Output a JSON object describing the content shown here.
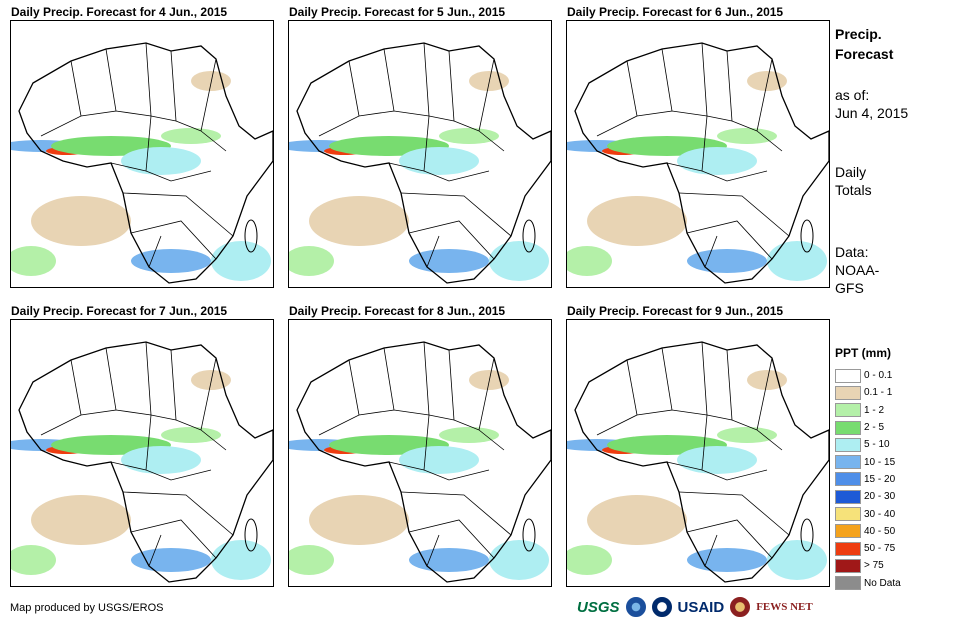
{
  "panels": [
    {
      "title": "Daily Precip. Forecast for 4 Jun., 2015"
    },
    {
      "title": "Daily Precip. Forecast for 5 Jun., 2015"
    },
    {
      "title": "Daily Precip. Forecast for 6 Jun., 2015"
    },
    {
      "title": "Daily Precip. Forecast for 7 Jun., 2015"
    },
    {
      "title": "Daily Precip. Forecast for 8 Jun., 2015"
    },
    {
      "title": "Daily Precip. Forecast for 9 Jun., 2015"
    }
  ],
  "sidebar": {
    "title_line1": "Precip.",
    "title_line2": "Forecast",
    "asof_label": "as of:",
    "asof_date": "Jun 4, 2015",
    "daily_line1": "Daily",
    "daily_line2": "Totals",
    "data_line1": "Data:",
    "data_line2": "NOAA-",
    "data_line3": "GFS"
  },
  "legend": {
    "title": "PPT (mm)",
    "items": [
      {
        "label": "0 - 0.1",
        "color": "#ffffff"
      },
      {
        "label": "0.1 - 1",
        "color": "#e8d4b4"
      },
      {
        "label": "1 - 2",
        "color": "#b4f0a8"
      },
      {
        "label": "2 - 5",
        "color": "#78dc70"
      },
      {
        "label": "5 - 10",
        "color": "#aeeef2"
      },
      {
        "label": "10 - 15",
        "color": "#78b4ee"
      },
      {
        "label": "15 - 20",
        "color": "#4e8ee8"
      },
      {
        "label": "20 - 30",
        "color": "#1e5ad6"
      },
      {
        "label": "30 - 40",
        "color": "#f6e27a"
      },
      {
        "label": "40 - 50",
        "color": "#f4a21c"
      },
      {
        "label": "50 - 75",
        "color": "#ee3c10"
      },
      {
        "label": "> 75",
        "color": "#a01818"
      },
      {
        "label": "No Data",
        "color": "#8c8c8c"
      }
    ]
  },
  "footer": {
    "credit": "Map produced by USGS/EROS"
  },
  "logos": {
    "usgs": "USGS",
    "usaid": "USAID",
    "fews": "FEWS NET"
  }
}
